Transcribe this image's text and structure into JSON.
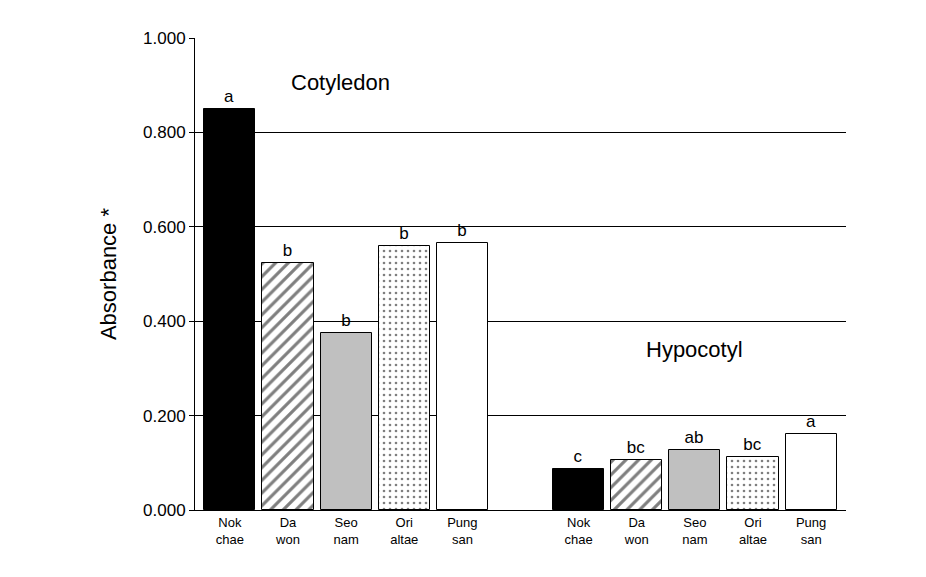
{
  "chart_data": {
    "type": "bar",
    "y_label": "Absorbance *",
    "categories": [
      "Cotyledon",
      "Hypocotyl"
    ],
    "ylim": [
      0,
      1
    ],
    "yticks": [
      {
        "value": 0,
        "label": "0.000"
      },
      {
        "value": 0.2,
        "label": "0.200"
      },
      {
        "value": 0.4,
        "label": "0.400"
      },
      {
        "value": 0.6,
        "label": "0.600"
      },
      {
        "value": 0.8,
        "label": "0.800"
      },
      {
        "value": 1,
        "label": "1.000"
      }
    ],
    "grid": true,
    "series": [
      {
        "name": "Nok\nchae",
        "color": "#000000",
        "marker": "solid",
        "values": [
          0.85,
          0.087
        ],
        "letters": [
          "a",
          "c"
        ]
      },
      {
        "name": "Da\nwon",
        "color": "#000000",
        "marker": "hatch",
        "values": [
          0.523,
          0.105
        ],
        "letters": [
          "b",
          "bc"
        ]
      },
      {
        "name": "Seo\nnam",
        "color": "#c0c0c0",
        "marker": "solid",
        "values": [
          0.376,
          0.127
        ],
        "letters": [
          "b",
          "ab"
        ]
      },
      {
        "name": "Ori\naltae",
        "color": "#000000",
        "marker": "dots",
        "values": [
          0.56,
          0.113
        ],
        "letters": [
          "b",
          "bc"
        ]
      },
      {
        "name": "Pung\nsan",
        "color": "#ffffff",
        "marker": "solid",
        "values": [
          0.565,
          0.16
        ],
        "letters": [
          "b",
          "a"
        ]
      }
    ]
  }
}
